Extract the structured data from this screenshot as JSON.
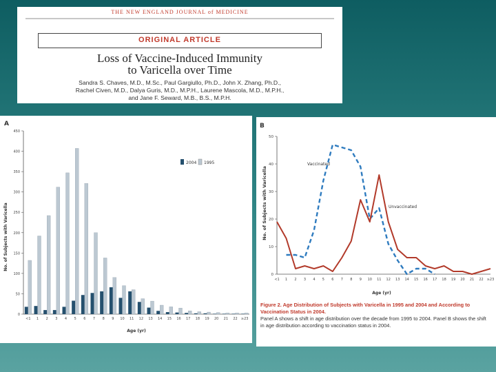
{
  "header": {
    "journal": "THE NEW ENGLAND JOURNAL of MEDICINE",
    "section": "ORIGINAL ARTICLE",
    "title_line1": "Loss of Vaccine-Induced Immunity",
    "title_line2": "to Varicella over Time",
    "authors_line1": "Sandra S. Chaves, M.D., M.Sc., Paul Gargiullo, Ph.D., John X. Zhang, Ph.D.,",
    "authors_line2": "Rachel Civen, M.D., Dalya Guris, M.D., M.P.H., Laurene Mascola, M.D., M.P.H.,",
    "authors_line3": "and Jane F. Seward, M.B., B.S., M.P.H."
  },
  "colors": {
    "s2004": "#25506e",
    "s1995": "#bcc8d2",
    "vaccinated": "#2e7bbf",
    "unvaccinated": "#b23a2a",
    "red_text": "#c0392b"
  },
  "chart_data": [
    {
      "type": "bar",
      "panel_label": "A",
      "categories": [
        "<1",
        "1",
        "2",
        "3",
        "4",
        "5",
        "6",
        "7",
        "8",
        "9",
        "10",
        "11",
        "12",
        "13",
        "14",
        "15",
        "16",
        "17",
        "18",
        "19",
        "20",
        "21",
        "22",
        "≥23"
      ],
      "series": [
        {
          "name": "2004",
          "values": [
            18,
            20,
            10,
            10,
            18,
            33,
            47,
            52,
            56,
            66,
            40,
            56,
            30,
            16,
            8,
            5,
            4,
            3,
            2,
            2,
            1,
            1,
            1,
            1
          ]
        },
        {
          "name": "1995",
          "values": [
            132,
            192,
            242,
            312,
            347,
            407,
            321,
            200,
            138,
            90,
            70,
            60,
            38,
            32,
            22,
            18,
            15,
            8,
            6,
            5,
            4,
            3,
            3,
            3
          ]
        }
      ],
      "ylabel": "No. of Subjects with Varicella",
      "xlabel": "Age (yr)",
      "ylim": [
        0,
        450
      ],
      "yticks": [
        "0",
        "50",
        "100",
        "150",
        "200",
        "250",
        "300",
        "350",
        "400",
        "450"
      ],
      "legend_position": "top-right"
    },
    {
      "type": "line",
      "panel_label": "B",
      "x": [
        "<1",
        "1",
        "2",
        "3",
        "4",
        "5",
        "6",
        "7",
        "8",
        "9",
        "10",
        "11",
        "12",
        "13",
        "14",
        "15",
        "16",
        "17",
        "18",
        "19",
        "20",
        "21",
        "22",
        "≥23"
      ],
      "series": [
        {
          "name": "Vaccinated",
          "values": [
            null,
            7,
            7,
            6,
            16,
            34,
            47,
            46,
            45,
            39,
            20,
            24,
            11,
            5,
            0,
            2,
            2,
            0,
            null,
            null,
            null,
            null,
            null,
            null
          ]
        },
        {
          "name": "Unvaccinated",
          "values": [
            19,
            13,
            2,
            3,
            2,
            3,
            1,
            6,
            12,
            27,
            19,
            36,
            19,
            9,
            6,
            6,
            3,
            2,
            3,
            1,
            1,
            0,
            1,
            2
          ]
        }
      ],
      "ylabel": "No. of Subjects with Varicella",
      "xlabel": "Age (yr)",
      "ylim": [
        0,
        50
      ],
      "yticks": [
        "0",
        "10",
        "20",
        "30",
        "40",
        "50"
      ],
      "caption_title": "Figure 2. Age Distribution of Subjects with Varicella in 1995 and 2004 and According to Vaccination Status in 2004.",
      "caption_text": "Panel A shows a shift in age distribution over the decade from 1995 to 2004. Panel B shows the shift in age distribution according to vaccination status in 2004."
    }
  ]
}
